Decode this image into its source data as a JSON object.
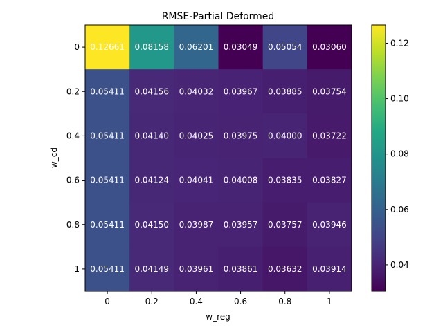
{
  "chart_data": {
    "type": "heatmap",
    "title": "RMSE-Partial Deformed",
    "xlabel": "w_reg",
    "ylabel": "w_cd",
    "x_categories": [
      "0",
      "0.2",
      "0.4",
      "0.6",
      "0.8",
      "1"
    ],
    "y_categories": [
      "0",
      "0.2",
      "0.4",
      "0.6",
      "0.8",
      "1"
    ],
    "values": [
      [
        0.12661,
        0.08158,
        0.06201,
        0.03049,
        0.05054,
        0.0306
      ],
      [
        0.05411,
        0.04156,
        0.04032,
        0.03967,
        0.03885,
        0.03754
      ],
      [
        0.05411,
        0.0414,
        0.04025,
        0.03975,
        0.04,
        0.03722
      ],
      [
        0.05411,
        0.04124,
        0.04041,
        0.04008,
        0.03835,
        0.03827
      ],
      [
        0.05411,
        0.0415,
        0.03987,
        0.03957,
        0.03757,
        0.03946
      ],
      [
        0.05411,
        0.04149,
        0.03961,
        0.03861,
        0.03632,
        0.03914
      ]
    ],
    "cell_labels": [
      [
        "0.12661",
        "0.08158",
        "0.06201",
        "0.03049",
        "0.05054",
        "0.03060"
      ],
      [
        "0.05411",
        "0.04156",
        "0.04032",
        "0.03967",
        "0.03885",
        "0.03754"
      ],
      [
        "0.05411",
        "0.04140",
        "0.04025",
        "0.03975",
        "0.04000",
        "0.03722"
      ],
      [
        "0.05411",
        "0.04124",
        "0.04041",
        "0.04008",
        "0.03835",
        "0.03827"
      ],
      [
        "0.05411",
        "0.04150",
        "0.03987",
        "0.03957",
        "0.03757",
        "0.03946"
      ],
      [
        "0.05411",
        "0.04149",
        "0.03961",
        "0.03861",
        "0.03632",
        "0.03914"
      ]
    ],
    "colormap": "viridis",
    "color_range": [
      0.03049,
      0.12661
    ],
    "colorbar_ticks": [
      0.04,
      0.06,
      0.08,
      0.1,
      0.12
    ],
    "colorbar_tick_labels": [
      "0.04",
      "0.06",
      "0.08",
      "0.10",
      "0.12"
    ],
    "grid": false,
    "legend": "colorbar-right"
  }
}
